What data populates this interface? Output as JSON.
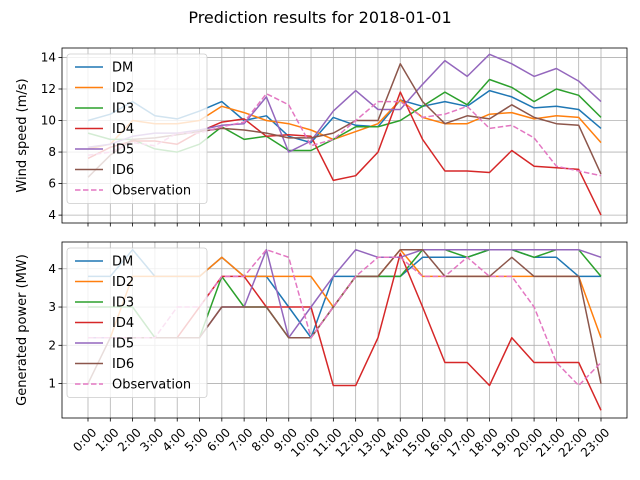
{
  "title": "Prediction results for 2018-01-01",
  "colors": {
    "DM": "#1f77b4",
    "ID2": "#ff7f0e",
    "ID3": "#2ca02c",
    "ID4": "#d62728",
    "ID5": "#9467bd",
    "ID6": "#8c564b",
    "Observation": "#e377c2"
  },
  "chart_data": [
    {
      "type": "line",
      "ylabel": "Wind speed (m/s)",
      "ylim": [
        3.5,
        14.6
      ],
      "yticks": [
        4,
        6,
        8,
        10,
        12,
        14
      ],
      "grid": true,
      "legend": "upper-left",
      "x": [
        "0:00",
        "1:00",
        "2:00",
        "3:00",
        "4:00",
        "5:00",
        "6:00",
        "7:00",
        "8:00",
        "9:00",
        "10:00",
        "11:00",
        "12:00",
        "13:00",
        "14:00",
        "15:00",
        "16:00",
        "17:00",
        "18:00",
        "19:00",
        "20:00",
        "21:00",
        "22:00",
        "23:00"
      ],
      "series": [
        {
          "name": "DM",
          "values": [
            10.0,
            10.4,
            11.2,
            10.3,
            10.1,
            10.6,
            11.2,
            10.0,
            10.3,
            9.0,
            8.6,
            10.2,
            9.7,
            9.6,
            11.3,
            10.9,
            11.2,
            10.9,
            11.9,
            11.5,
            10.8,
            10.9,
            10.7,
            9.5
          ]
        },
        {
          "name": "ID2",
          "values": [
            8.2,
            8.5,
            10.0,
            9.8,
            9.8,
            10.0,
            10.9,
            10.5,
            10.0,
            9.8,
            9.4,
            8.8,
            9.3,
            9.8,
            11.3,
            10.2,
            9.8,
            9.8,
            10.4,
            10.5,
            10.1,
            10.3,
            10.2,
            8.6
          ]
        },
        {
          "name": "ID3",
          "values": [
            9.2,
            8.8,
            8.8,
            8.2,
            8.0,
            8.5,
            9.6,
            8.8,
            9.0,
            8.1,
            8.1,
            8.8,
            9.6,
            9.6,
            10.0,
            10.9,
            11.8,
            11.0,
            12.6,
            12.1,
            11.2,
            12.0,
            11.6,
            10.2
          ]
        },
        {
          "name": "ID4",
          "values": [
            7.6,
            8.3,
            8.7,
            8.7,
            8.5,
            9.3,
            9.9,
            10.1,
            9.0,
            9.1,
            9.0,
            6.2,
            6.5,
            8.0,
            11.8,
            8.8,
            6.8,
            6.8,
            6.7,
            8.1,
            7.1,
            7.0,
            6.9,
            4.0
          ]
        },
        {
          "name": "ID5",
          "values": [
            8.3,
            8.5,
            9.0,
            9.2,
            9.2,
            9.4,
            9.7,
            9.8,
            11.5,
            8.0,
            8.7,
            10.6,
            11.9,
            10.7,
            10.7,
            12.3,
            13.8,
            12.8,
            14.2,
            13.6,
            12.8,
            13.3,
            12.5,
            11.2
          ]
        },
        {
          "name": "ID6",
          "values": [
            6.4,
            7.8,
            8.8,
            8.9,
            9.1,
            9.3,
            9.5,
            9.4,
            9.2,
            8.9,
            8.9,
            9.2,
            10.0,
            10.0,
            13.6,
            11.2,
            9.8,
            10.3,
            10.1,
            11.0,
            10.2,
            9.8,
            9.7,
            6.6
          ]
        },
        {
          "name": "Observation",
          "dashed": true,
          "values": [
            7.8,
            8.0,
            8.6,
            8.4,
            9.2,
            9.2,
            9.6,
            9.9,
            11.7,
            11.0,
            8.4,
            8.8,
            10.0,
            11.2,
            11.2,
            10.2,
            10.4,
            10.9,
            9.5,
            9.7,
            8.9,
            7.1,
            6.8,
            6.5
          ]
        }
      ]
    },
    {
      "type": "line",
      "ylabel": "Generated power (MW)",
      "ylim": [
        0.1,
        4.7
      ],
      "yticks": [
        1,
        2,
        3,
        4
      ],
      "grid": true,
      "legend": "upper-left",
      "x": [
        "0:00",
        "1:00",
        "2:00",
        "3:00",
        "4:00",
        "5:00",
        "6:00",
        "7:00",
        "8:00",
        "9:00",
        "10:00",
        "11:00",
        "12:00",
        "13:00",
        "14:00",
        "15:00",
        "16:00",
        "17:00",
        "18:00",
        "19:00",
        "20:00",
        "21:00",
        "22:00",
        "23:00"
      ],
      "series": [
        {
          "name": "DM",
          "values": [
            3.8,
            3.8,
            4.5,
            3.8,
            3.8,
            3.8,
            4.3,
            3.8,
            3.8,
            3.0,
            2.2,
            3.8,
            3.8,
            3.8,
            3.8,
            4.3,
            4.3,
            4.3,
            4.5,
            4.5,
            4.3,
            4.3,
            3.8,
            3.8
          ]
        },
        {
          "name": "ID2",
          "values": [
            2.2,
            2.2,
            3.8,
            3.8,
            3.8,
            3.8,
            4.3,
            3.8,
            3.8,
            3.8,
            3.8,
            3.0,
            3.8,
            3.8,
            4.5,
            3.8,
            3.8,
            3.8,
            3.8,
            3.8,
            3.8,
            3.8,
            3.8,
            2.2
          ]
        },
        {
          "name": "ID3",
          "values": [
            3.0,
            3.0,
            3.0,
            2.2,
            2.2,
            2.2,
            3.8,
            3.0,
            3.0,
            2.2,
            2.2,
            3.0,
            3.8,
            3.8,
            3.8,
            4.5,
            4.5,
            4.3,
            4.5,
            4.5,
            4.3,
            4.5,
            4.5,
            3.8
          ]
        },
        {
          "name": "ID4",
          "values": [
            2.2,
            2.2,
            2.2,
            2.2,
            2.2,
            3.0,
            3.8,
            3.8,
            3.0,
            3.0,
            3.0,
            0.95,
            0.95,
            2.2,
            4.4,
            3.0,
            1.55,
            1.55,
            0.95,
            2.2,
            1.55,
            1.55,
            1.55,
            0.3
          ]
        },
        {
          "name": "ID5",
          "values": [
            2.2,
            2.2,
            2.2,
            2.2,
            2.2,
            2.2,
            3.0,
            3.0,
            4.5,
            2.2,
            3.0,
            3.8,
            4.5,
            4.3,
            4.3,
            4.5,
            4.5,
            4.5,
            4.5,
            4.5,
            4.5,
            4.5,
            4.5,
            4.3
          ]
        },
        {
          "name": "ID6",
          "values": [
            1.0,
            2.2,
            2.2,
            2.2,
            2.2,
            2.2,
            3.0,
            3.0,
            3.0,
            2.2,
            2.2,
            3.0,
            3.8,
            3.8,
            4.5,
            4.5,
            3.8,
            3.8,
            3.8,
            4.3,
            3.8,
            3.8,
            3.8,
            1.0
          ]
        },
        {
          "name": "Observation",
          "dashed": true,
          "values": [
            2.2,
            2.2,
            2.2,
            2.2,
            3.0,
            3.0,
            3.8,
            3.8,
            4.5,
            4.3,
            2.2,
            3.0,
            3.8,
            4.3,
            4.3,
            3.8,
            3.8,
            4.3,
            3.8,
            3.8,
            3.0,
            1.55,
            0.95,
            1.55
          ]
        }
      ]
    }
  ]
}
